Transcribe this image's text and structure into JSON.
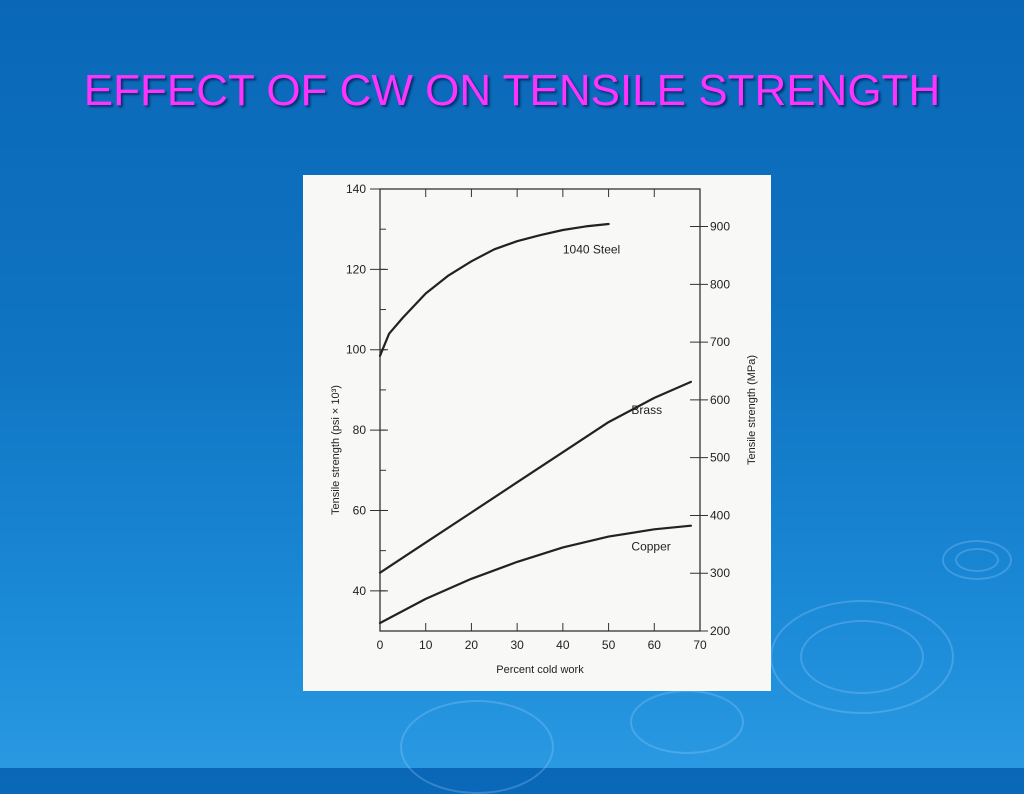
{
  "slide": {
    "title": "EFFECT OF CW ON TENSILE STRENGTH",
    "title_color": "#ff33ff",
    "background_color": "#0f74c2"
  },
  "chart_data": {
    "type": "line",
    "xlabel": "Percent cold work",
    "ylabel": "Tensile strength (psi × 10³)",
    "ylabel_right": "Tensile strength (MPa)",
    "xlim": [
      0,
      70
    ],
    "ylim": [
      30,
      140
    ],
    "ylim_right_mpa": [
      200,
      965
    ],
    "x_ticks": [
      0,
      10,
      20,
      30,
      40,
      50,
      60,
      70
    ],
    "y_ticks_left": [
      40,
      60,
      80,
      100,
      120,
      140
    ],
    "y_ticks_right": [
      200,
      300,
      400,
      500,
      600,
      700,
      800,
      900
    ],
    "grid": false,
    "series": [
      {
        "name": "1040 Steel",
        "x": [
          0,
          2,
          5,
          10,
          15,
          20,
          25,
          30,
          35,
          40,
          45,
          50
        ],
        "values": [
          98.5,
          104,
          108,
          114,
          118.5,
          122,
          125,
          127,
          128.5,
          129.8,
          130.7,
          131.3
        ]
      },
      {
        "name": "Brass",
        "x": [
          0,
          10,
          20,
          30,
          40,
          50,
          60,
          68
        ],
        "values": [
          44.5,
          52,
          59.5,
          67,
          74.5,
          82,
          88,
          92
        ]
      },
      {
        "name": "Copper",
        "x": [
          0,
          10,
          20,
          30,
          40,
          50,
          60,
          68
        ],
        "values": [
          32,
          38,
          43,
          47.2,
          50.8,
          53.5,
          55.3,
          56.2
        ]
      }
    ]
  }
}
